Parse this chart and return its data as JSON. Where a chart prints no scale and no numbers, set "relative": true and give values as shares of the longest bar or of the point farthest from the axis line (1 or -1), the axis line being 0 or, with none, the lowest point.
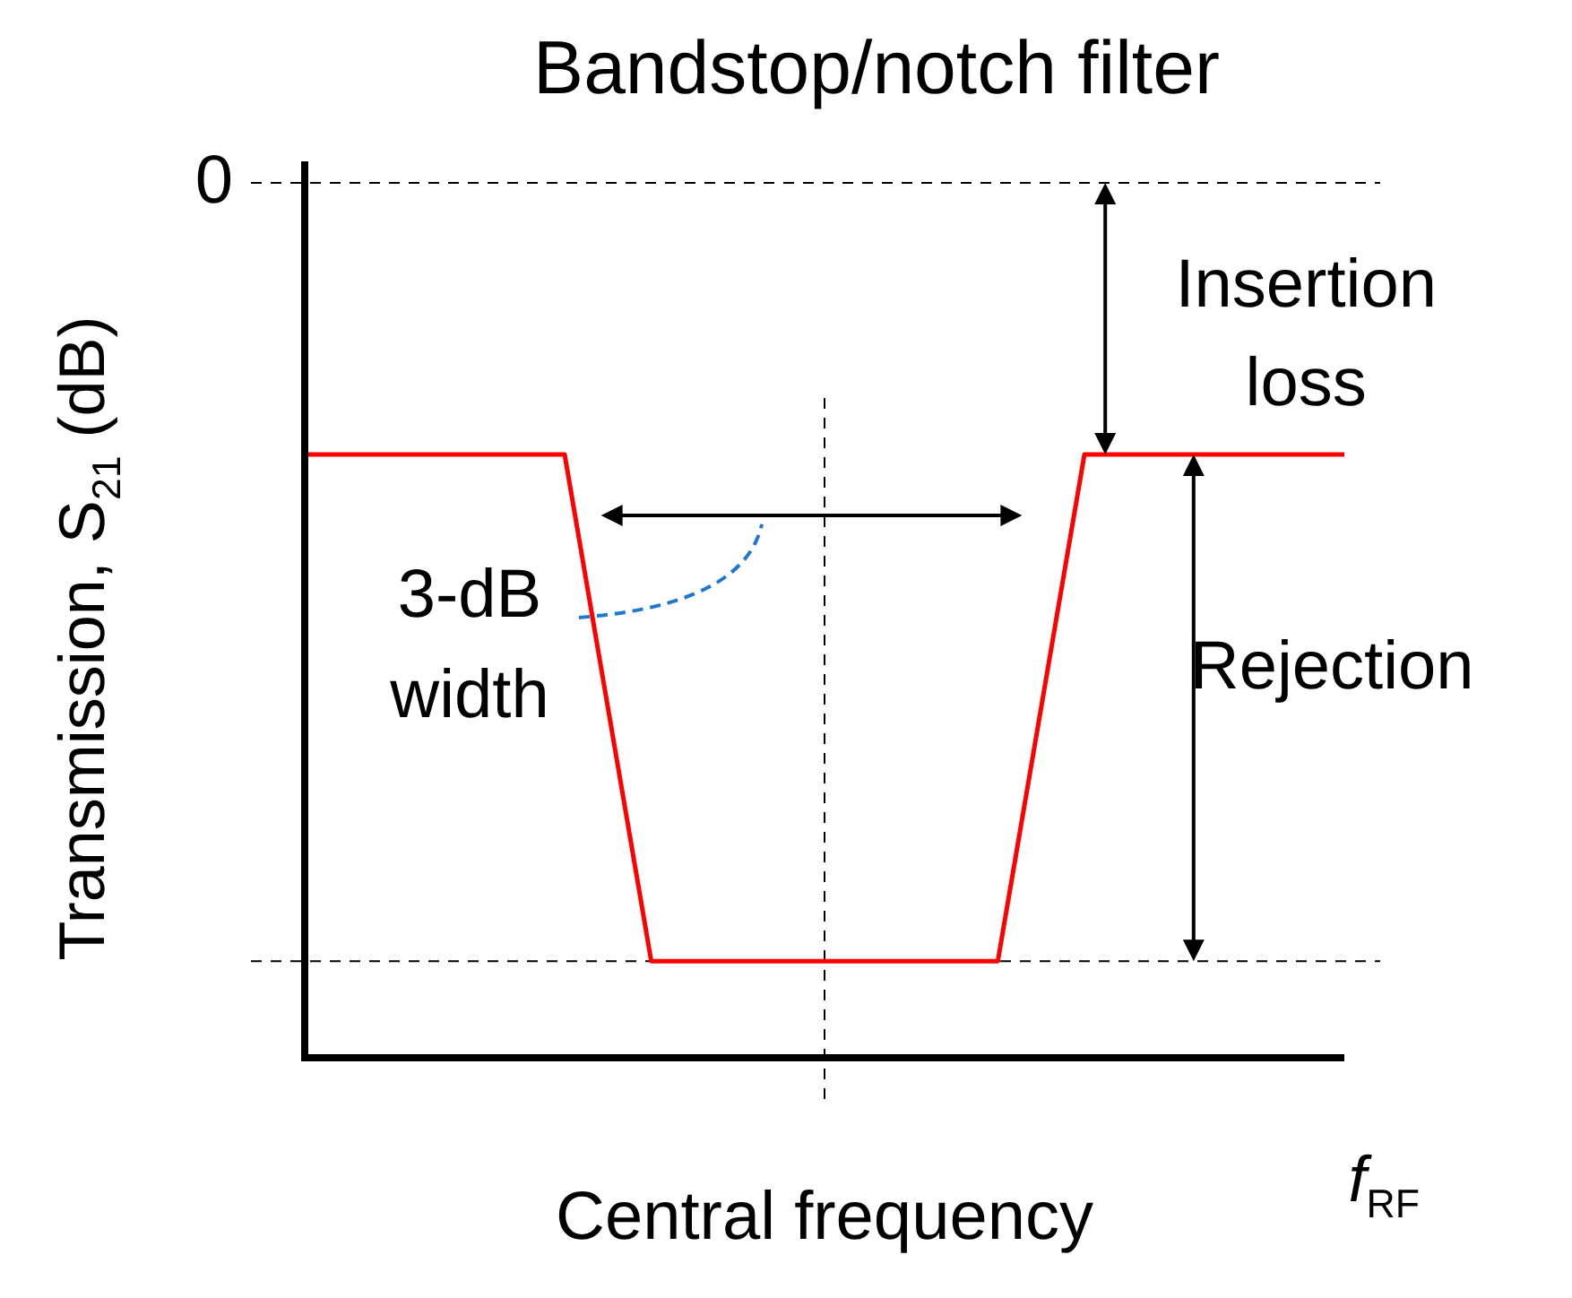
{
  "chart_data": {
    "type": "line",
    "title": "Bandstop/notch filter",
    "xlabel": "f$_{RF}$",
    "ylabel": "Transmission, S$_{21}$ (dB)",
    "relative": true,
    "categories": [
      null,
      null,
      null,
      null,
      null,
      null,
      null,
      null,
      null,
      null,
      null,
      null,
      null
    ],
    "series": [
      {
        "color": "#ff0000",
        "values": [
          1,
          1,
          1,
          1,
          0.16,
          0.16,
          0.16,
          0.16,
          0.16,
          1,
          1,
          1,
          1
        ]
      }
    ],
    "ref_lines": [
      {
        "axis": "y",
        "value": 1.45,
        "line_style": "dashed",
        "color": "#000000"
      },
      {
        "axis": "y",
        "value": 0.16,
        "line_style": "dashed",
        "color": "#000000"
      }
    ],
    "annotations": [
      "Insertion loss",
      "Rejection",
      "3-dB width",
      "0",
      "Central frequency"
    ],
    "legend": false,
    "marker": "none",
    "line_style": "solid"
  }
}
